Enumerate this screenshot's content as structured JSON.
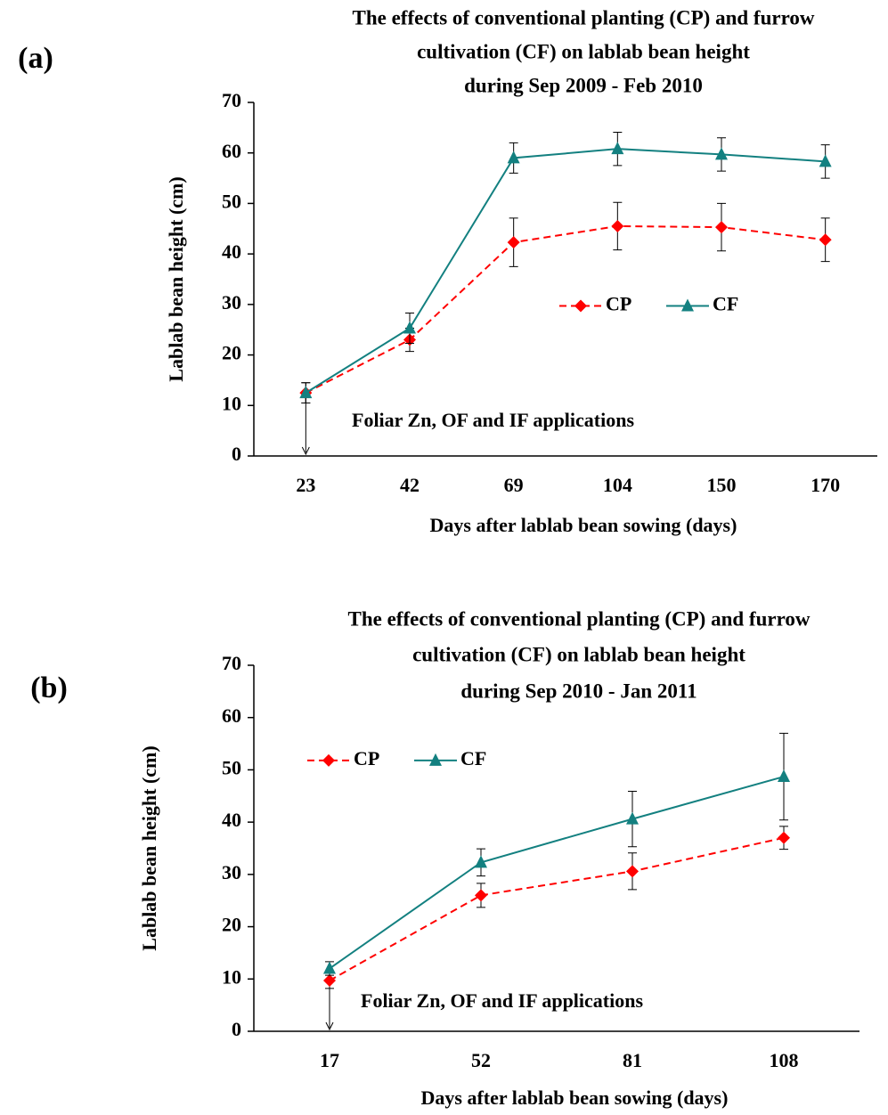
{
  "chart_data": [
    {
      "type": "line",
      "panel_label": "(a)",
      "title": [
        "The effects of conventional planting (CP) and furrow",
        "cultivation (CF) on lablab bean height",
        "during Sep 2009 - Feb 2010"
      ],
      "xlabel": "Days after  lablab bean sowing (days)",
      "ylabel": "Lablab bean height (cm)",
      "categories": [
        "23",
        "42",
        "69",
        "104",
        "150",
        "170"
      ],
      "series": [
        {
          "name": "CP",
          "color": "#ff0000",
          "linestyle": "dashed",
          "marker": "diamond",
          "values": [
            12.5,
            23,
            42.3,
            45.5,
            45.3,
            42.8
          ],
          "errors": [
            2,
            2.3,
            4.8,
            4.7,
            4.7,
            4.3
          ]
        },
        {
          "name": "CF",
          "color": "#138080",
          "linestyle": "solid",
          "marker": "triangle",
          "values": [
            12.5,
            25.3,
            59,
            60.8,
            59.7,
            58.3
          ],
          "errors": [
            2,
            3,
            3,
            3.3,
            3.3,
            3.3
          ]
        }
      ],
      "ylim": [
        0,
        70
      ],
      "yticks": [
        0,
        10,
        20,
        30,
        40,
        50,
        60,
        70
      ],
      "annotation": "Foliar Zn, OF and IF applications",
      "legend": "center-right"
    },
    {
      "type": "line",
      "panel_label": "(b)",
      "title": [
        "The effects of conventional planting (CP) and furrow",
        "cultivation (CF) on lablab bean height",
        "during Sep 2010 - Jan 2011"
      ],
      "xlabel": "Days after  lablab bean sowing (days)",
      "ylabel": "Lablab bean height (cm)",
      "categories": [
        "17",
        "52",
        "81",
        "108"
      ],
      "series": [
        {
          "name": "CP",
          "color": "#ff0000",
          "linestyle": "dashed",
          "marker": "diamond",
          "values": [
            9.7,
            26,
            30.6,
            37
          ],
          "errors": [
            1.5,
            2.3,
            3.5,
            2.2
          ]
        },
        {
          "name": "CF",
          "color": "#138080",
          "linestyle": "solid",
          "marker": "triangle",
          "values": [
            12,
            32.3,
            40.6,
            48.7
          ],
          "errors": [
            1.3,
            2.6,
            5.3,
            8.3
          ]
        }
      ],
      "ylim": [
        0,
        70
      ],
      "yticks": [
        0,
        10,
        20,
        30,
        40,
        50,
        60,
        70
      ],
      "annotation": "Foliar Zn, OF and IF applications",
      "legend": "upper-left"
    }
  ]
}
